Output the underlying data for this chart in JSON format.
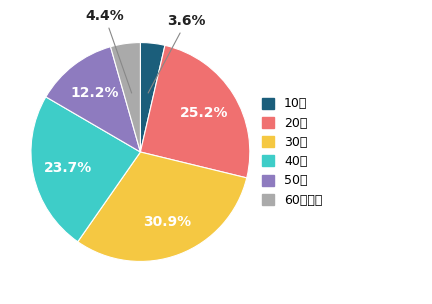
{
  "labels": [
    "10代",
    "20代",
    "30代",
    "40代",
    "50代",
    "60代以上"
  ],
  "values": [
    3.6,
    25.2,
    30.9,
    23.7,
    12.2,
    4.4
  ],
  "colors": [
    "#1b5e7b",
    "#f07070",
    "#f5c842",
    "#3ecdc8",
    "#8e7bbf",
    "#aaaaaa"
  ],
  "startangle": 90,
  "legend_labels": [
    "10代",
    "20代",
    "30代",
    "40代",
    "50代",
    "60代以上"
  ],
  "figsize": [
    4.32,
    3.04
  ],
  "dpi": 100,
  "outside_indices": [
    0,
    5
  ],
  "outside_labels": [
    "3.6%",
    "4.4%"
  ],
  "inside_indices": [
    1,
    2,
    3,
    4
  ],
  "inside_labels": [
    "25.2%",
    "30.9%",
    "23.7%",
    "12.2%"
  ]
}
